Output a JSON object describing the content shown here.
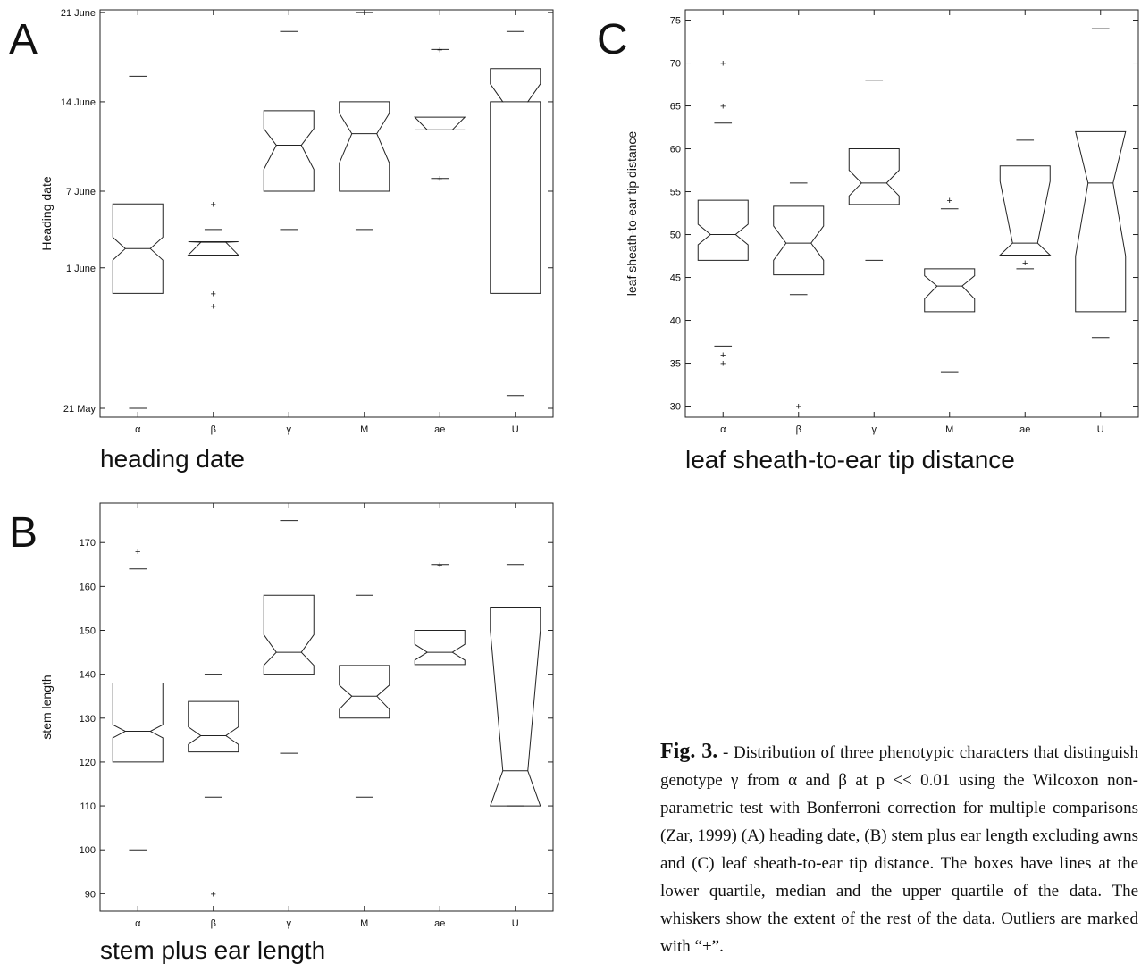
{
  "chart_data": [
    {
      "id": "A",
      "type": "boxplot",
      "panel_label": "A",
      "title": "heading date",
      "ylabel": "Heading date",
      "categories": [
        "α",
        "β",
        "γ",
        "M",
        "ae",
        "U"
      ],
      "ylim": [
        0.3,
        32.2
      ],
      "yticks": [
        {
          "v": 1,
          "label": "21 May"
        },
        {
          "v": 12,
          "label": "1 June"
        },
        {
          "v": 18,
          "label": "7 June"
        },
        {
          "v": 25,
          "label": "14 June"
        },
        {
          "v": 32,
          "label": "21 June"
        }
      ],
      "boxes": [
        {
          "q1": 10,
          "med": 13.5,
          "q3": 17,
          "n_lo": 12.6,
          "n_hi": 14.4,
          "wlo": 1,
          "whi": 27,
          "out": []
        },
        {
          "q1": 13,
          "med": 14,
          "q3": 14.05,
          "n_lo": 13,
          "n_hi": 14.05,
          "wlo": 15,
          "whi": 12.95,
          "out": [
            9,
            10,
            17
          ]
        },
        {
          "q1": 18,
          "med": 21.6,
          "q3": 24.3,
          "n_lo": 19.7,
          "n_hi": 22.9,
          "wlo": 15,
          "whi": 30.5,
          "out": []
        },
        {
          "q1": 18,
          "med": 22.5,
          "q3": 25,
          "n_lo": 20.2,
          "n_hi": 24.1,
          "wlo": 15,
          "whi": 32,
          "out": []
        },
        {
          "q1": 22.8,
          "med": 22.8,
          "q3": 23.8,
          "n_lo": 22.8,
          "n_hi": 23.8,
          "wlo": 19,
          "whi": 29.1,
          "out": [
            19,
            29.1
          ]
        },
        {
          "q1": 10,
          "med": 25,
          "q3": 27.6,
          "n_lo": 25,
          "n_hi": 26.4,
          "wlo": 2,
          "whi": 30.5,
          "out": []
        }
      ]
    },
    {
      "id": "B",
      "type": "boxplot",
      "panel_label": "B",
      "title": "stem plus ear length",
      "ylabel": "stem length",
      "categories": [
        "α",
        "β",
        "γ",
        "M",
        "ae",
        "U"
      ],
      "ylim": [
        86,
        179
      ],
      "yticks": [
        {
          "v": 90,
          "label": "90"
        },
        {
          "v": 100,
          "label": "100"
        },
        {
          "v": 110,
          "label": "110"
        },
        {
          "v": 120,
          "label": "120"
        },
        {
          "v": 130,
          "label": "130"
        },
        {
          "v": 140,
          "label": "140"
        },
        {
          "v": 150,
          "label": "150"
        },
        {
          "v": 160,
          "label": "160"
        },
        {
          "v": 170,
          "label": "170"
        }
      ],
      "boxes": [
        {
          "q1": 120,
          "med": 127,
          "q3": 138,
          "n_lo": 125.5,
          "n_hi": 128.5,
          "wlo": 100,
          "whi": 164,
          "out": [
            168
          ]
        },
        {
          "q1": 122.3,
          "med": 126,
          "q3": 133.8,
          "n_lo": 124,
          "n_hi": 128,
          "wlo": 112,
          "whi": 140,
          "out": [
            90
          ]
        },
        {
          "q1": 140,
          "med": 145,
          "q3": 158,
          "n_lo": 142,
          "n_hi": 149,
          "wlo": 122,
          "whi": 175,
          "out": []
        },
        {
          "q1": 130,
          "med": 135,
          "q3": 142,
          "n_lo": 132,
          "n_hi": 137.5,
          "wlo": 112,
          "whi": 158,
          "out": []
        },
        {
          "q1": 142.2,
          "med": 145,
          "q3": 150,
          "n_lo": 143.2,
          "n_hi": 146.8,
          "wlo": 138,
          "whi": 165,
          "out": [
            165
          ]
        },
        {
          "q1": 110,
          "med": 118,
          "q3": 155.3,
          "n_lo": 110,
          "n_hi": 150,
          "wlo": 110,
          "whi": 165,
          "out": []
        }
      ]
    },
    {
      "id": "C",
      "type": "boxplot",
      "panel_label": "C",
      "title": "leaf sheath-to-ear tip distance",
      "ylabel": "leaf sheath-to-ear tip distance",
      "categories": [
        "α",
        "β",
        "γ",
        "M",
        "ae",
        "U"
      ],
      "ylim": [
        28.7,
        76.2
      ],
      "yticks": [
        {
          "v": 30,
          "label": "30"
        },
        {
          "v": 35,
          "label": "35"
        },
        {
          "v": 40,
          "label": "40"
        },
        {
          "v": 45,
          "label": "45"
        },
        {
          "v": 50,
          "label": "50"
        },
        {
          "v": 55,
          "label": "55"
        },
        {
          "v": 60,
          "label": "60"
        },
        {
          "v": 65,
          "label": "65"
        },
        {
          "v": 70,
          "label": "70"
        },
        {
          "v": 75,
          "label": "75"
        }
      ],
      "boxes": [
        {
          "q1": 47,
          "med": 50,
          "q3": 54,
          "n_lo": 48.8,
          "n_hi": 51.2,
          "wlo": 37,
          "whi": 63,
          "out": [
            35,
            36,
            65,
            70
          ]
        },
        {
          "q1": 45.3,
          "med": 49,
          "q3": 53.3,
          "n_lo": 47,
          "n_hi": 51,
          "wlo": 43,
          "whi": 56,
          "out": [
            30
          ]
        },
        {
          "q1": 53.5,
          "med": 56,
          "q3": 60,
          "n_lo": 54.5,
          "n_hi": 57.5,
          "wlo": 47,
          "whi": 68,
          "out": []
        },
        {
          "q1": 41,
          "med": 44,
          "q3": 46,
          "n_lo": 42.5,
          "n_hi": 45.2,
          "wlo": 34,
          "whi": 53,
          "out": [
            54
          ]
        },
        {
          "q1": 47.6,
          "med": 49,
          "q3": 58,
          "n_lo": 47.6,
          "n_hi": 56.2,
          "wlo": 46,
          "whi": 61,
          "out": [
            46.7
          ]
        },
        {
          "q1": 41,
          "med": 56,
          "q3": 62,
          "n_lo": 47.5,
          "n_hi": 62,
          "wlo": 38,
          "whi": 74,
          "out": []
        }
      ]
    }
  ],
  "caption": {
    "lead": "Fig. 3.",
    "text": " - Distribution of three phenotypic characters that distinguish genotype γ from α and β at p << 0.01 using the Wilcoxon non-parametric test with Bonferroni correction for multiple comparisons (Zar, 1999) (A) heading date, (B) stem plus ear length excluding awns and (C) leaf sheath-to-ear tip distance. The boxes have lines at the lower quartile, median and the upper quartile of the data. The whiskers show the extent of the rest of the data. Outliers are marked with “+”."
  }
}
